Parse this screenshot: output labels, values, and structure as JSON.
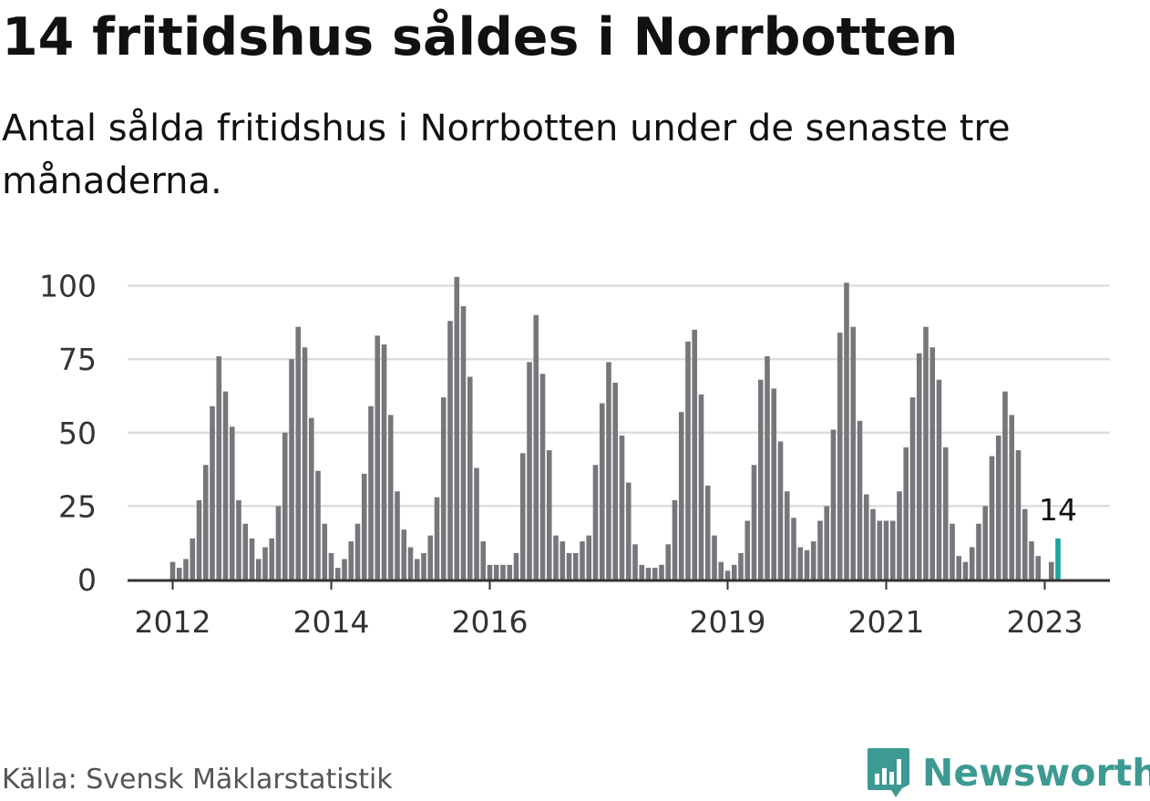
{
  "title": "14 fritidshus såldes i Norrbotten",
  "subtitle": "Antal sålda fritidshus i Norrbotten under de senaste tre månaderna.",
  "source": "Källa: Svensk Mäklarstatistik",
  "brand": "Newsworthy",
  "colors": {
    "bar": "#77767b",
    "highlight": "#1aa59b",
    "grid": "#dddddd",
    "axis": "#333333",
    "brand": "#3d9a92"
  },
  "chart_data": {
    "type": "bar",
    "start": "2012-01",
    "x_ticks": [
      "2012",
      "2014",
      "2016",
      "2019",
      "2021",
      "2023"
    ],
    "y_ticks": [
      0,
      25,
      50,
      75,
      100
    ],
    "ylim": [
      0,
      105
    ],
    "values": [
      6,
      4,
      7,
      14,
      27,
      39,
      59,
      76,
      64,
      52,
      27,
      19,
      14,
      7,
      11,
      14,
      25,
      50,
      75,
      86,
      79,
      55,
      37,
      19,
      9,
      4,
      7,
      13,
      19,
      36,
      59,
      83,
      80,
      56,
      30,
      17,
      11,
      7,
      9,
      15,
      28,
      62,
      88,
      103,
      93,
      69,
      38,
      13,
      5,
      5,
      5,
      5,
      9,
      43,
      74,
      90,
      70,
      44,
      15,
      13,
      9,
      9,
      13,
      15,
      39,
      60,
      74,
      67,
      49,
      33,
      12,
      5,
      4,
      4,
      5,
      12,
      27,
      57,
      81,
      85,
      63,
      32,
      15,
      6,
      3,
      5,
      9,
      20,
      39,
      68,
      76,
      65,
      47,
      30,
      21,
      11,
      10,
      13,
      20,
      25,
      51,
      84,
      101,
      86,
      54,
      29,
      24,
      20,
      20,
      20,
      30,
      45,
      62,
      77,
      86,
      79,
      68,
      45,
      19,
      8,
      6,
      11,
      19,
      25,
      42,
      49,
      64,
      56,
      44,
      24,
      13,
      8,
      0,
      6,
      14
    ],
    "highlight_label": "14",
    "grid": true
  }
}
